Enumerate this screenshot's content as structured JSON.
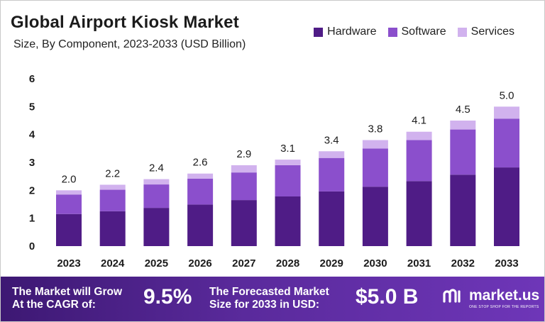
{
  "header": {
    "title": "Global Airport Kiosk Market",
    "subtitle": "Size, By Component, 2023-2033 (USD Billion)"
  },
  "legend": {
    "items": [
      {
        "label": "Hardware",
        "color": "#4f1c86"
      },
      {
        "label": "Software",
        "color": "#8b4fcc"
      },
      {
        "label": "Services",
        "color": "#d1b2ee"
      }
    ]
  },
  "chart_data": {
    "type": "bar",
    "stacked": true,
    "title": "Global Airport Kiosk Market",
    "subtitle": "Size, By Component, 2023-2033 (USD Billion)",
    "categories": [
      "2023",
      "2024",
      "2025",
      "2026",
      "2027",
      "2028",
      "2029",
      "2030",
      "2031",
      "2032",
      "2033"
    ],
    "series": [
      {
        "name": "Hardware",
        "color": "#4f1c86",
        "values": [
          1.15,
          1.25,
          1.37,
          1.49,
          1.65,
          1.78,
          1.96,
          2.13,
          2.33,
          2.56,
          2.82
        ]
      },
      {
        "name": "Software",
        "color": "#8b4fcc",
        "values": [
          0.7,
          0.77,
          0.84,
          0.93,
          0.99,
          1.12,
          1.2,
          1.37,
          1.47,
          1.62,
          1.75
        ]
      },
      {
        "name": "Services",
        "color": "#d1b2ee",
        "values": [
          0.15,
          0.18,
          0.19,
          0.18,
          0.26,
          0.2,
          0.24,
          0.3,
          0.3,
          0.32,
          0.43
        ]
      }
    ],
    "totals": [
      2.0,
      2.2,
      2.4,
      2.6,
      2.9,
      3.1,
      3.4,
      3.8,
      4.1,
      4.5,
      5.0
    ],
    "total_labels": [
      "2.0",
      "2.2",
      "2.4",
      "2.6",
      "2.9",
      "3.1",
      "3.4",
      "3.8",
      "4.1",
      "4.5",
      "5.0"
    ],
    "yticks": [
      "0",
      "1",
      "2",
      "3",
      "4",
      "5",
      "6"
    ],
    "ylim": [
      0,
      6
    ],
    "grid": false,
    "legend_position": "top-right"
  },
  "footer": {
    "cagr_label_line1": "The Market will Grow",
    "cagr_label_line2": "At the CAGR of:",
    "cagr_value": "9.5%",
    "forecast_label_line1": "The Forecasted Market",
    "forecast_label_line2": "Size for 2033 in USD:",
    "forecast_value": "$5.0 B",
    "brand": "market.us",
    "tagline": "ONE STOP SHOP FOR THE REPORTS"
  }
}
